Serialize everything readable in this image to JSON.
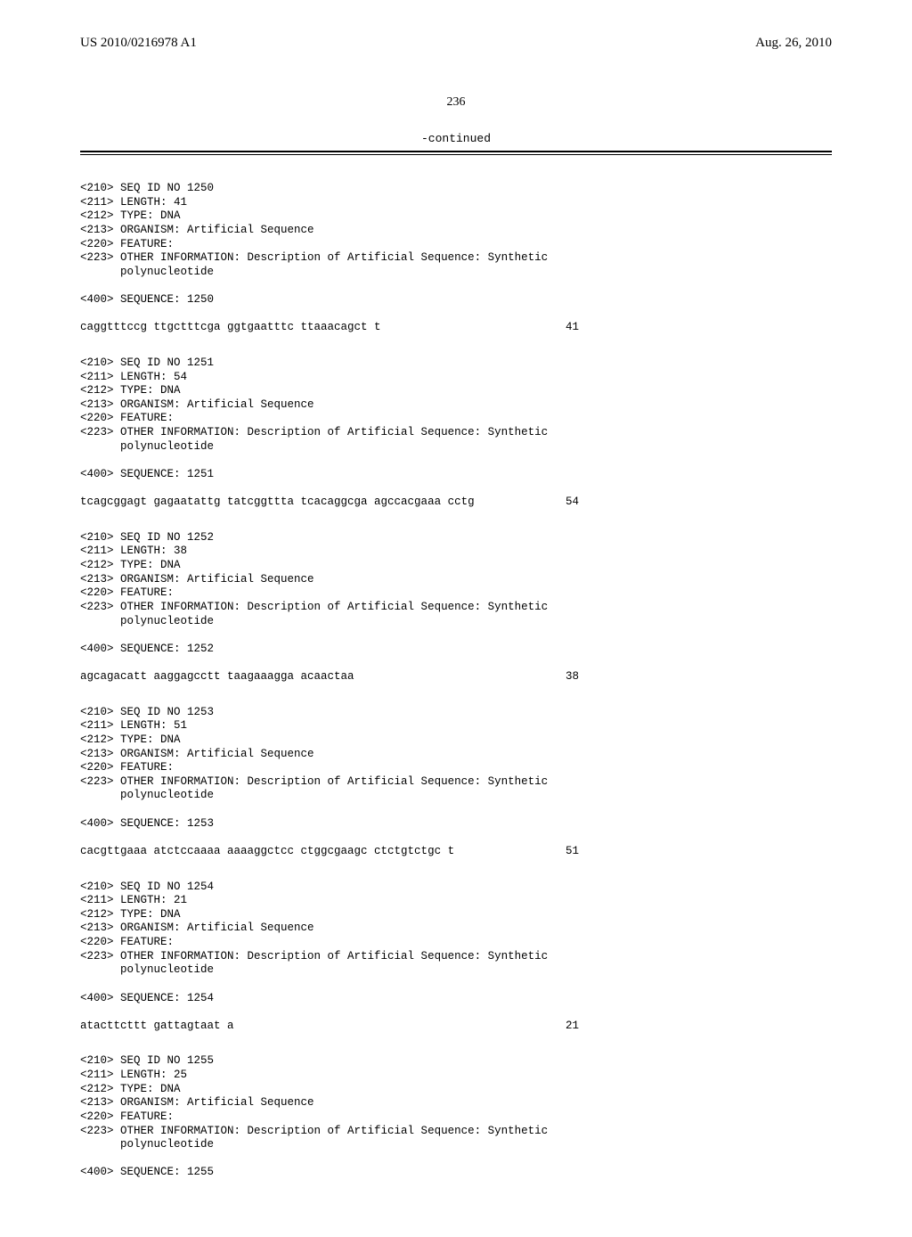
{
  "header": {
    "left": "US 2010/0216978 A1",
    "right": "Aug. 26, 2010"
  },
  "page_number": "236",
  "continued": "-continued",
  "entries": [
    {
      "id": "1250",
      "meta": [
        "<210> SEQ ID NO 1250",
        "<211> LENGTH: 41",
        "<212> TYPE: DNA",
        "<213> ORGANISM: Artificial Sequence",
        "<220> FEATURE:",
        "<223> OTHER INFORMATION: Description of Artificial Sequence: Synthetic",
        "      polynucleotide"
      ],
      "seq_label": "<400> SEQUENCE: 1250",
      "sequence": "caggtttccg ttgctttcga ggtgaatttc ttaaacagct t",
      "length": "41"
    },
    {
      "id": "1251",
      "meta": [
        "<210> SEQ ID NO 1251",
        "<211> LENGTH: 54",
        "<212> TYPE: DNA",
        "<213> ORGANISM: Artificial Sequence",
        "<220> FEATURE:",
        "<223> OTHER INFORMATION: Description of Artificial Sequence: Synthetic",
        "      polynucleotide"
      ],
      "seq_label": "<400> SEQUENCE: 1251",
      "sequence": "tcagcggagt gagaatattg tatcggttta tcacaggcga agccacgaaa cctg",
      "length": "54"
    },
    {
      "id": "1252",
      "meta": [
        "<210> SEQ ID NO 1252",
        "<211> LENGTH: 38",
        "<212> TYPE: DNA",
        "<213> ORGANISM: Artificial Sequence",
        "<220> FEATURE:",
        "<223> OTHER INFORMATION: Description of Artificial Sequence: Synthetic",
        "      polynucleotide"
      ],
      "seq_label": "<400> SEQUENCE: 1252",
      "sequence": "agcagacatt aaggagcctt taagaaagga acaactaa",
      "length": "38"
    },
    {
      "id": "1253",
      "meta": [
        "<210> SEQ ID NO 1253",
        "<211> LENGTH: 51",
        "<212> TYPE: DNA",
        "<213> ORGANISM: Artificial Sequence",
        "<220> FEATURE:",
        "<223> OTHER INFORMATION: Description of Artificial Sequence: Synthetic",
        "      polynucleotide"
      ],
      "seq_label": "<400> SEQUENCE: 1253",
      "sequence": "cacgttgaaa atctccaaaa aaaaggctcc ctggcgaagc ctctgtctgc t",
      "length": "51"
    },
    {
      "id": "1254",
      "meta": [
        "<210> SEQ ID NO 1254",
        "<211> LENGTH: 21",
        "<212> TYPE: DNA",
        "<213> ORGANISM: Artificial Sequence",
        "<220> FEATURE:",
        "<223> OTHER INFORMATION: Description of Artificial Sequence: Synthetic",
        "      polynucleotide"
      ],
      "seq_label": "<400> SEQUENCE: 1254",
      "sequence": "atacttcttt gattagtaat a",
      "length": "21"
    },
    {
      "id": "1255",
      "meta": [
        "<210> SEQ ID NO 1255",
        "<211> LENGTH: 25",
        "<212> TYPE: DNA",
        "<213> ORGANISM: Artificial Sequence",
        "<220> FEATURE:",
        "<223> OTHER INFORMATION: Description of Artificial Sequence: Synthetic",
        "      polynucleotide"
      ],
      "seq_label": "<400> SEQUENCE: 1255",
      "sequence": "",
      "length": ""
    }
  ]
}
